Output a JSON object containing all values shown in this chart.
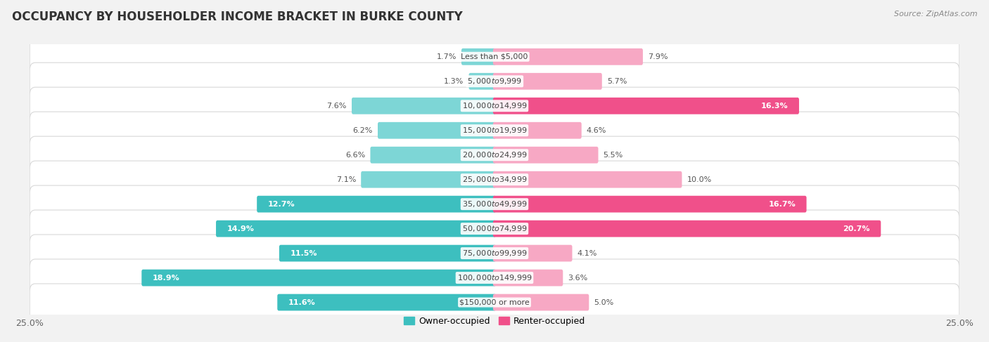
{
  "title": "OCCUPANCY BY HOUSEHOLDER INCOME BRACKET IN BURKE COUNTY",
  "source": "Source: ZipAtlas.com",
  "categories": [
    "Less than $5,000",
    "$5,000 to $9,999",
    "$10,000 to $14,999",
    "$15,000 to $19,999",
    "$20,000 to $24,999",
    "$25,000 to $34,999",
    "$35,000 to $49,999",
    "$50,000 to $74,999",
    "$75,000 to $99,999",
    "$100,000 to $149,999",
    "$150,000 or more"
  ],
  "owner_values": [
    1.7,
    1.3,
    7.6,
    6.2,
    6.6,
    7.1,
    12.7,
    14.9,
    11.5,
    18.9,
    11.6
  ],
  "renter_values": [
    7.9,
    5.7,
    16.3,
    4.6,
    5.5,
    10.0,
    16.7,
    20.7,
    4.1,
    3.6,
    5.0
  ],
  "owner_color_dark": "#3DBFBF",
  "owner_color_light": "#7DD6D6",
  "renter_color_dark": "#F0508A",
  "renter_color_light": "#F7A8C4",
  "owner_label": "Owner-occupied",
  "renter_label": "Renter-occupied",
  "axis_limit": 25.0,
  "background_color": "#f2f2f2",
  "row_bg_color": "#ffffff",
  "row_border_color": "#d8d8d8",
  "title_fontsize": 12,
  "source_fontsize": 8,
  "bar_height": 0.52,
  "owner_dark_threshold": 11.0,
  "renter_dark_threshold": 14.0
}
